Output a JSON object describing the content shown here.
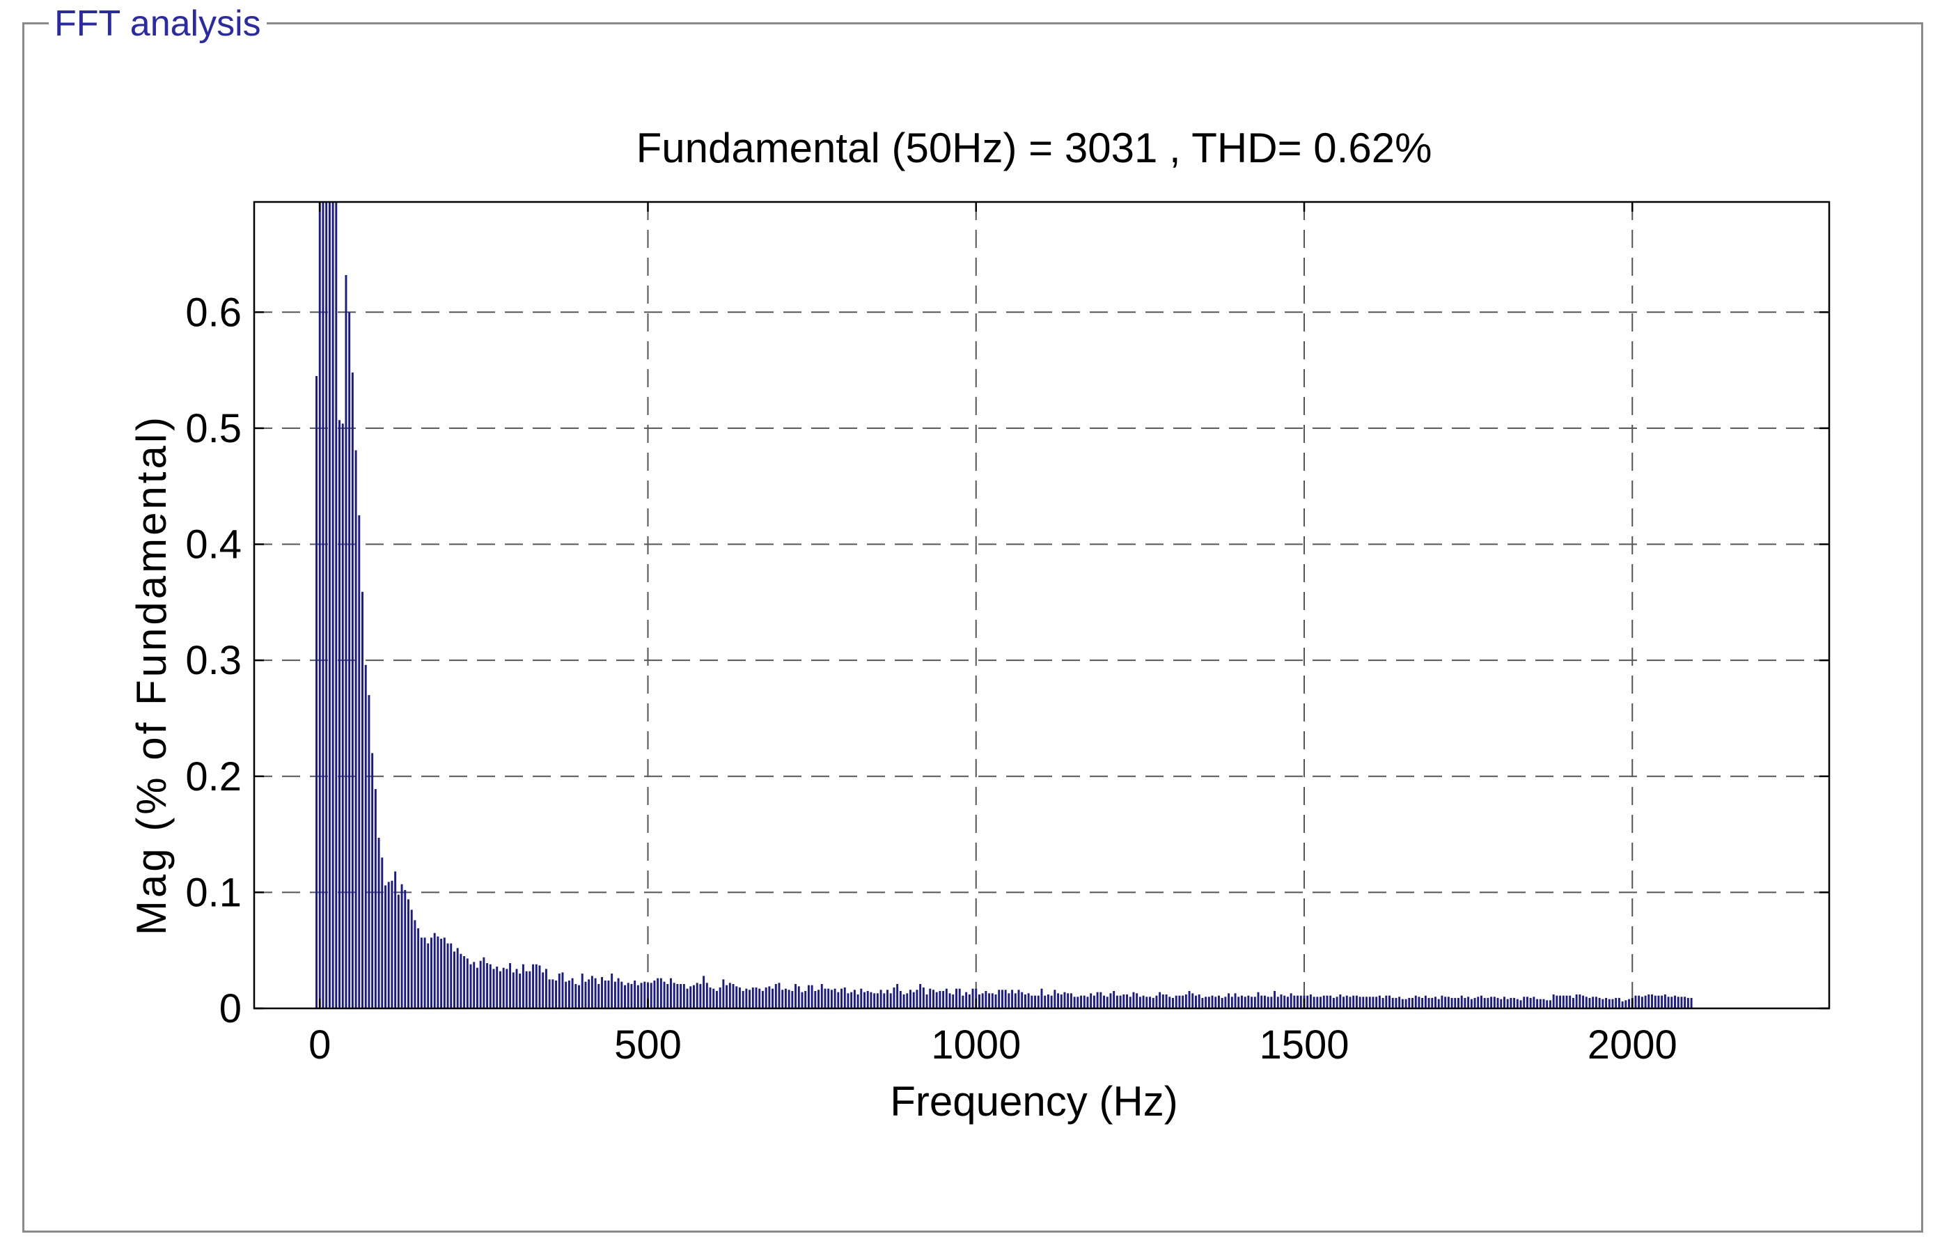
{
  "panel": {
    "title": "FFT analysis"
  },
  "colors": {
    "bar": "#1a1a8c",
    "axis": "#000000",
    "grid": "#555555",
    "frame": "#8a8a8a",
    "panel_title": "#2a2aa8"
  },
  "chart_data": {
    "type": "bar",
    "title": "Fundamental (50Hz) = 3031 , THD= 0.62%",
    "xlabel": "Frequency (Hz)",
    "ylabel": "Mag (% of Fundamental)",
    "xlim": [
      -100,
      2300
    ],
    "ylim": [
      0,
      0.695
    ],
    "xticks": [
      0,
      500,
      1000,
      1500,
      2000
    ],
    "xtick_labels": [
      "0",
      "500",
      "1000",
      "1500",
      "2000"
    ],
    "yticks": [
      0,
      0.1,
      0.2,
      0.3,
      0.4,
      0.5,
      0.6
    ],
    "ytick_labels": [
      "0",
      "0.1",
      "0.2",
      "0.3",
      "0.4",
      "0.5",
      "0.6"
    ],
    "grid": true,
    "bin_width_hz": 5,
    "x_start_hz": -5,
    "values": [
      0.545,
      0.695,
      0.695,
      0.695,
      0.695,
      0.695,
      0.695,
      0.507,
      0.504,
      0.632,
      0.6,
      0.548,
      0.481,
      0.425,
      0.359,
      0.296,
      0.27,
      0.22,
      0.189,
      0.147,
      0.13,
      0.106,
      0.109,
      0.11,
      0.118,
      0.098,
      0.107,
      0.102,
      0.094,
      0.085,
      0.076,
      0.069,
      0.061,
      0.061,
      0.056,
      0.061,
      0.065,
      0.062,
      0.06,
      0.061,
      0.056,
      0.056,
      0.049,
      0.052,
      0.047,
      0.045,
      0.043,
      0.038,
      0.04,
      0.035,
      0.041,
      0.044,
      0.039,
      0.038,
      0.034,
      0.036,
      0.032,
      0.035,
      0.034,
      0.039,
      0.031,
      0.034,
      0.03,
      0.038,
      0.032,
      0.032,
      0.038,
      0.038,
      0.037,
      0.031,
      0.034,
      0.025,
      0.025,
      0.024,
      0.03,
      0.031,
      0.023,
      0.024,
      0.026,
      0.021,
      0.02,
      0.03,
      0.023,
      0.025,
      0.028,
      0.026,
      0.021,
      0.027,
      0.024,
      0.024,
      0.03,
      0.023,
      0.026,
      0.023,
      0.02,
      0.022,
      0.021,
      0.024,
      0.02,
      0.022,
      0.023,
      0.022,
      0.022,
      0.024,
      0.026,
      0.026,
      0.023,
      0.021,
      0.026,
      0.022,
      0.021,
      0.021,
      0.021,
      0.017,
      0.019,
      0.02,
      0.022,
      0.021,
      0.028,
      0.022,
      0.018,
      0.017,
      0.015,
      0.018,
      0.025,
      0.02,
      0.022,
      0.021,
      0.019,
      0.018,
      0.015,
      0.017,
      0.016,
      0.018,
      0.018,
      0.017,
      0.015,
      0.018,
      0.019,
      0.017,
      0.021,
      0.022,
      0.016,
      0.017,
      0.016,
      0.015,
      0.021,
      0.019,
      0.014,
      0.015,
      0.02,
      0.02,
      0.015,
      0.016,
      0.021,
      0.017,
      0.017,
      0.016,
      0.017,
      0.014,
      0.017,
      0.018,
      0.013,
      0.014,
      0.016,
      0.012,
      0.017,
      0.014,
      0.015,
      0.014,
      0.013,
      0.013,
      0.016,
      0.013,
      0.016,
      0.013,
      0.018,
      0.021,
      0.015,
      0.012,
      0.013,
      0.016,
      0.014,
      0.016,
      0.021,
      0.018,
      0.012,
      0.017,
      0.016,
      0.014,
      0.015,
      0.015,
      0.017,
      0.013,
      0.012,
      0.017,
      0.017,
      0.011,
      0.014,
      0.012,
      0.017,
      0.017,
      0.012,
      0.013,
      0.015,
      0.013,
      0.013,
      0.012,
      0.016,
      0.016,
      0.016,
      0.013,
      0.016,
      0.013,
      0.016,
      0.014,
      0.012,
      0.013,
      0.011,
      0.011,
      0.011,
      0.017,
      0.011,
      0.012,
      0.011,
      0.016,
      0.013,
      0.012,
      0.014,
      0.013,
      0.013,
      0.01,
      0.01,
      0.011,
      0.011,
      0.01,
      0.013,
      0.011,
      0.014,
      0.014,
      0.011,
      0.01,
      0.013,
      0.015,
      0.011,
      0.011,
      0.012,
      0.012,
      0.01,
      0.014,
      0.013,
      0.01,
      0.011,
      0.01,
      0.01,
      0.009,
      0.011,
      0.014,
      0.012,
      0.012,
      0.01,
      0.009,
      0.011,
      0.011,
      0.011,
      0.012,
      0.015,
      0.013,
      0.011,
      0.012,
      0.009,
      0.01,
      0.01,
      0.011,
      0.01,
      0.011,
      0.009,
      0.01,
      0.013,
      0.01,
      0.013,
      0.01,
      0.011,
      0.01,
      0.011,
      0.01,
      0.01,
      0.014,
      0.011,
      0.011,
      0.01,
      0.01,
      0.015,
      0.01,
      0.012,
      0.011,
      0.01,
      0.013,
      0.011,
      0.011,
      0.011,
      0.011,
      0.011,
      0.012,
      0.01,
      0.01,
      0.01,
      0.011,
      0.011,
      0.011,
      0.009,
      0.01,
      0.012,
      0.01,
      0.011,
      0.01,
      0.011,
      0.011,
      0.01,
      0.01,
      0.01,
      0.01,
      0.01,
      0.01,
      0.011,
      0.009,
      0.011,
      0.011,
      0.009,
      0.009,
      0.01,
      0.008,
      0.008,
      0.009,
      0.009,
      0.011,
      0.01,
      0.009,
      0.011,
      0.009,
      0.009,
      0.01,
      0.008,
      0.011,
      0.01,
      0.01,
      0.009,
      0.009,
      0.009,
      0.011,
      0.009,
      0.01,
      0.008,
      0.009,
      0.01,
      0.011,
      0.009,
      0.009,
      0.01,
      0.01,
      0.009,
      0.008,
      0.01,
      0.008,
      0.009,
      0.009,
      0.008,
      0.007,
      0.01,
      0.01,
      0.009,
      0.01,
      0.008,
      0.008,
      0.008,
      0.007,
      0.007,
      0.012,
      0.011,
      0.011,
      0.011,
      0.011,
      0.011,
      0.009,
      0.012,
      0.012,
      0.011,
      0.01,
      0.009,
      0.01,
      0.01,
      0.009,
      0.008,
      0.009,
      0.008,
      0.008,
      0.009,
      0.009,
      0.006,
      0.007,
      0.008,
      0.009,
      0.011,
      0.011,
      0.01,
      0.011,
      0.012,
      0.012,
      0.011,
      0.011,
      0.011,
      0.012,
      0.01,
      0.01,
      0.011,
      0.01,
      0.01,
      0.01,
      0.009,
      0.009
    ]
  }
}
